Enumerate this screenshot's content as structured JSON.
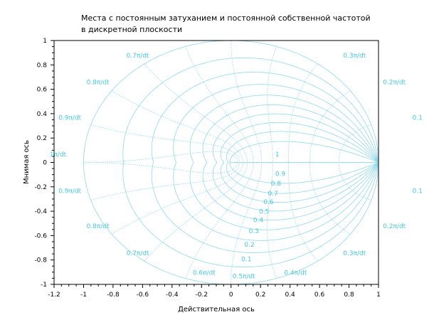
{
  "chart_data": {
    "type": "line",
    "title_lines": [
      "Места с постоянным затуханием и постоянной собственной частотой",
      "в дискретной плоскости"
    ],
    "xlabel": "Действительная ось",
    "ylabel": "Мнимая ось",
    "xlim": [
      -1.2,
      1
    ],
    "ylim": [
      -1,
      1
    ],
    "x_ticks": [
      "-1.2",
      "-1",
      "-0.8",
      "-0.6",
      "-0.4",
      "-0.2",
      "0",
      "0.2",
      "0.4",
      "0.6",
      "0.8",
      "1"
    ],
    "y_ticks": [
      "-1",
      "-0.8",
      "-0.6",
      "-0.4",
      "-0.2",
      "0",
      "0.2",
      "0.4",
      "0.6",
      "0.8",
      "1"
    ],
    "damping_values": [
      0,
      0.1,
      0.2,
      0.3,
      0.4,
      0.5,
      0.6,
      0.7,
      0.8,
      0.9,
      1
    ],
    "damping_labels": [
      {
        "text": "1",
        "x": 0.3,
        "y": 0.05
      },
      {
        "text": "0.9",
        "x": 0.3,
        "y": -0.11
      },
      {
        "text": "0.8",
        "x": 0.27,
        "y": -0.19
      },
      {
        "text": "0.7",
        "x": 0.25,
        "y": -0.27
      },
      {
        "text": "0.6",
        "x": 0.22,
        "y": -0.34
      },
      {
        "text": "0.5",
        "x": 0.19,
        "y": -0.42
      },
      {
        "text": "0.4",
        "x": 0.15,
        "y": -0.49
      },
      {
        "text": "0.3",
        "x": 0.12,
        "y": -0.58
      },
      {
        "text": "0.2",
        "x": 0.09,
        "y": -0.69
      },
      {
        "text": "0.1",
        "x": 0.07,
        "y": -0.81
      },
      {
        "text": "0.5π/dt",
        "x": 0.01,
        "y": -0.95
      }
    ],
    "frequency_values": [
      0.1,
      0.2,
      0.3,
      0.4,
      0.5,
      0.6,
      0.7,
      0.8,
      0.9,
      1.0
    ],
    "frequency_labels": [
      {
        "text": "0.7π/dt",
        "x": -0.71,
        "y": 0.86
      },
      {
        "text": "0.3π/dt",
        "x": 0.76,
        "y": 0.86
      },
      {
        "text": "0.8π/dt",
        "x": -0.98,
        "y": 0.64
      },
      {
        "text": "0.2π/dt",
        "x": 1.03,
        "y": 0.64
      },
      {
        "text": "0.9π/dt",
        "x": -1.17,
        "y": 0.35
      },
      {
        "text": "0.1",
        "x": 1.23,
        "y": 0.35
      },
      {
        "text": "1π/dt",
        "x": -1.23,
        "y": 0.05
      },
      {
        "text": "0.9π/dt",
        "x": -1.17,
        "y": -0.25
      },
      {
        "text": "0.1",
        "x": 1.23,
        "y": -0.25
      },
      {
        "text": "0.8π/dt",
        "x": -0.98,
        "y": -0.54
      },
      {
        "text": "0.2π/dt",
        "x": 1.03,
        "y": -0.54
      },
      {
        "text": "0.7π/dt",
        "x": -0.71,
        "y": -0.76
      },
      {
        "text": "0.3π/dt",
        "x": 0.76,
        "y": -0.76
      },
      {
        "text": "0.6π/dt",
        "x": -0.26,
        "y": -0.92
      },
      {
        "text": "0.4π/dt",
        "x": 0.36,
        "y": -0.92
      }
    ],
    "grid": true,
    "colors": {
      "curve": "#8fd8ec",
      "label": "#46c8e0",
      "axis": "#000000",
      "background": "#ffffff"
    }
  }
}
